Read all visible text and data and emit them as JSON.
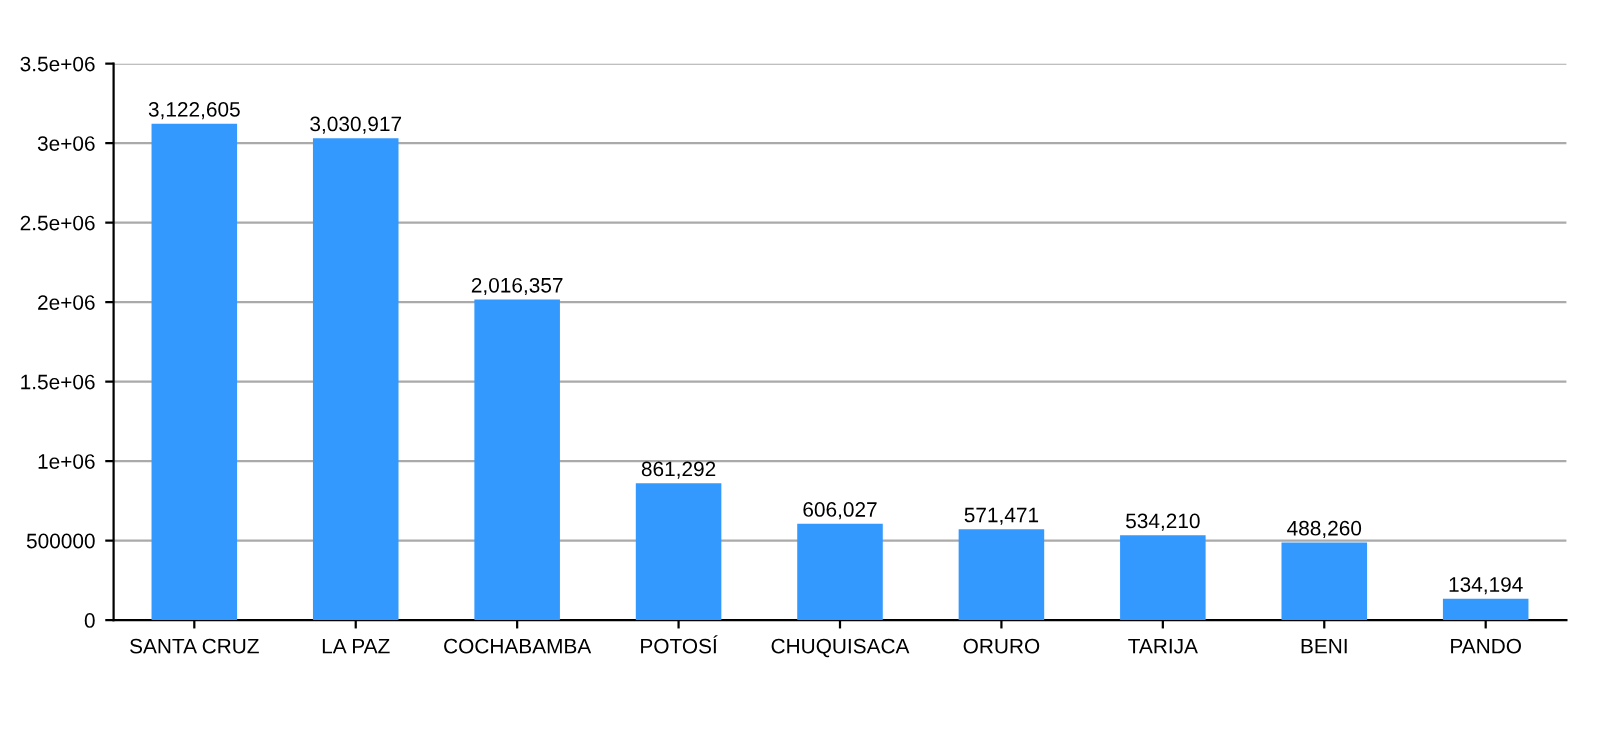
{
  "chart_data": {
    "type": "bar",
    "categories": [
      "SANTA CRUZ",
      "LA PAZ",
      "COCHABAMBA",
      "POTOSÍ",
      "CHUQUISACA",
      "ORURO",
      "TARIJA",
      "BENI",
      "PANDO"
    ],
    "values": [
      3122605,
      3030917,
      2016357,
      861292,
      606027,
      571471,
      534210,
      488260,
      134194
    ],
    "value_labels": [
      "3,122,605",
      "3,030,917",
      "2,016,357",
      "861,292",
      "606,027",
      "571,471",
      "534,210",
      "488,260",
      "134,194"
    ],
    "color": "#3399ff",
    "ylim": [
      0,
      3500000
    ],
    "yticks": [
      0,
      500000,
      {
        "value": 1000000,
        "label": "1e+06"
      },
      {
        "value": 1500000,
        "label": "1.5e+06"
      },
      {
        "value": 2000000,
        "label": "2e+06"
      },
      {
        "value": 2500000,
        "label": "2.5e+06"
      },
      {
        "value": 3000000,
        "label": "3e+06"
      },
      {
        "value": 3500000,
        "label": "3.5e+06"
      }
    ],
    "grid": "y"
  }
}
